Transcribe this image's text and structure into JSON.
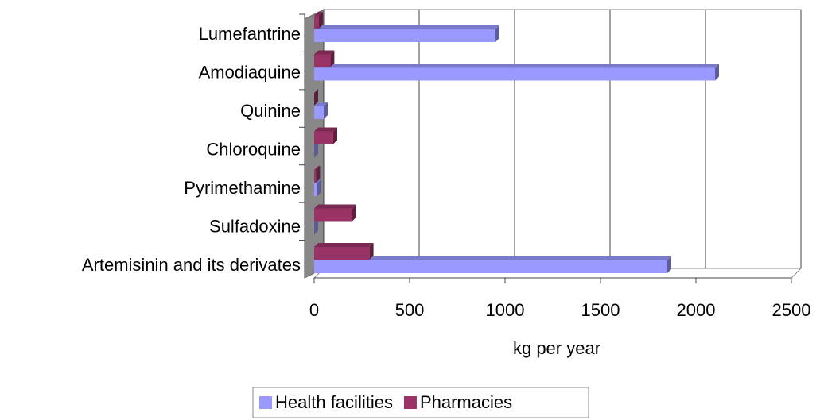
{
  "chart_data": {
    "type": "bar",
    "orientation": "horizontal",
    "x_label": "kg per year",
    "categories": [
      "Lumefantrine",
      "Amodiaquine",
      "Quinine",
      "Chloroquine",
      "Pyrimethamine",
      "Sulfadoxine",
      "Artemisinin and its derivates"
    ],
    "series": [
      {
        "name": "Health facilities",
        "color": "#9999ff",
        "values": [
          950,
          2100,
          50,
          0,
          15,
          0,
          1850
        ]
      },
      {
        "name": "Pharmacies",
        "color": "#993366",
        "values": [
          25,
          85,
          0,
          100,
          10,
          200,
          290
        ]
      }
    ],
    "xlim": [
      0,
      2500
    ],
    "xticks": [
      0,
      500,
      1000,
      1500,
      2000,
      2500
    ],
    "grid": true,
    "legend": "bottom"
  }
}
